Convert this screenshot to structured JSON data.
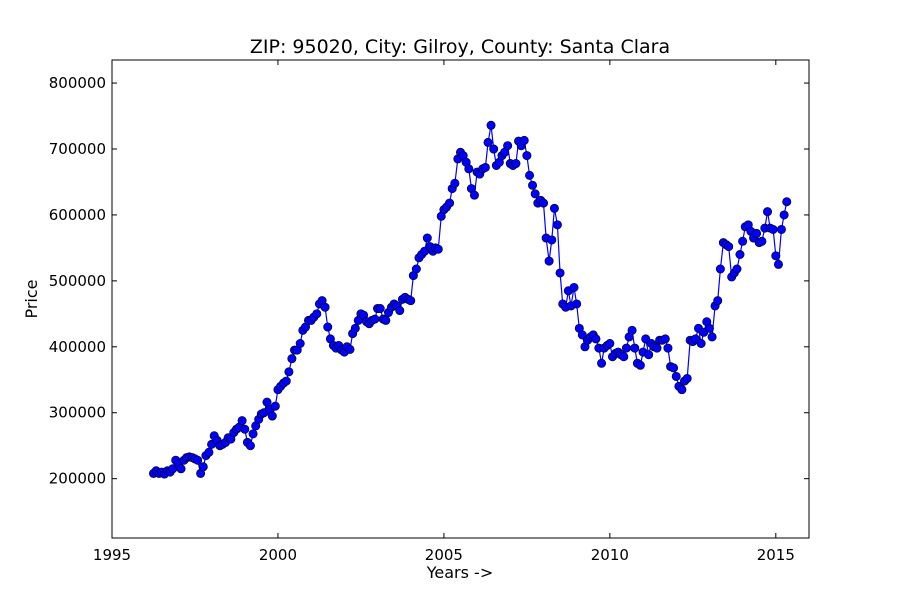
{
  "chart_data": {
    "type": "line",
    "title": "ZIP: 95020, City: Gilroy, County: Santa Clara",
    "xlabel": "Years ->",
    "ylabel": "Price",
    "xlim": [
      1995,
      2016
    ],
    "xticks": [
      1995,
      2000,
      2005,
      2010,
      2015
    ],
    "ylim": [
      110000,
      835000
    ],
    "yticks": [
      200000,
      300000,
      400000,
      500000,
      600000,
      700000,
      800000
    ],
    "grid": false,
    "x": [
      1996.25,
      1996.33,
      1996.42,
      1996.5,
      1996.58,
      1996.67,
      1996.75,
      1996.83,
      1996.92,
      1997,
      1997.08,
      1997.17,
      1997.25,
      1997.33,
      1997.42,
      1997.5,
      1997.58,
      1997.67,
      1997.75,
      1997.83,
      1997.92,
      1998,
      1998.08,
      1998.17,
      1998.25,
      1998.33,
      1998.42,
      1998.5,
      1998.58,
      1998.67,
      1998.75,
      1998.83,
      1998.92,
      1999,
      1999.08,
      1999.17,
      1999.25,
      1999.33,
      1999.42,
      1999.5,
      1999.58,
      1999.67,
      1999.75,
      1999.83,
      1999.92,
      2000,
      2000.08,
      2000.17,
      2000.25,
      2000.33,
      2000.42,
      2000.5,
      2000.58,
      2000.67,
      2000.75,
      2000.83,
      2000.92,
      2001,
      2001.08,
      2001.17,
      2001.25,
      2001.33,
      2001.42,
      2001.5,
      2001.58,
      2001.67,
      2001.75,
      2001.83,
      2001.92,
      2002,
      2002.08,
      2002.17,
      2002.25,
      2002.33,
      2002.42,
      2002.5,
      2002.58,
      2002.67,
      2002.75,
      2002.83,
      2002.92,
      2003,
      2003.08,
      2003.17,
      2003.25,
      2003.33,
      2003.42,
      2003.5,
      2003.58,
      2003.67,
      2003.75,
      2003.83,
      2003.92,
      2004,
      2004.08,
      2004.17,
      2004.25,
      2004.33,
      2004.42,
      2004.5,
      2004.58,
      2004.67,
      2004.75,
      2004.83,
      2004.92,
      2005,
      2005.08,
      2005.17,
      2005.25,
      2005.33,
      2005.42,
      2005.5,
      2005.58,
      2005.67,
      2005.75,
      2005.83,
      2005.92,
      2006,
      2006.08,
      2006.17,
      2006.25,
      2006.33,
      2006.42,
      2006.5,
      2006.58,
      2006.67,
      2006.75,
      2006.83,
      2006.92,
      2007,
      2007.08,
      2007.17,
      2007.25,
      2007.33,
      2007.42,
      2007.5,
      2007.58,
      2007.67,
      2007.75,
      2007.83,
      2007.92,
      2008,
      2008.08,
      2008.17,
      2008.25,
      2008.33,
      2008.42,
      2008.5,
      2008.58,
      2008.67,
      2008.75,
      2008.83,
      2008.92,
      2009,
      2009.08,
      2009.17,
      2009.25,
      2009.33,
      2009.42,
      2009.5,
      2009.58,
      2009.67,
      2009.75,
      2009.83,
      2009.92,
      2010,
      2010.08,
      2010.17,
      2010.25,
      2010.33,
      2010.42,
      2010.5,
      2010.58,
      2010.67,
      2010.75,
      2010.83,
      2010.92,
      2011,
      2011.08,
      2011.17,
      2011.25,
      2011.33,
      2011.42,
      2011.5,
      2011.58,
      2011.67,
      2011.75,
      2011.83,
      2011.92,
      2012,
      2012.08,
      2012.17,
      2012.25,
      2012.33,
      2012.42,
      2012.5,
      2012.58,
      2012.67,
      2012.75,
      2012.83,
      2012.92,
      2013,
      2013.08,
      2013.17,
      2013.25,
      2013.33,
      2013.42,
      2013.5,
      2013.58,
      2013.67,
      2013.75,
      2013.83,
      2013.92,
      2014,
      2014.08,
      2014.17,
      2014.25,
      2014.33,
      2014.42,
      2014.5,
      2014.58,
      2014.67,
      2014.75,
      2014.83,
      2014.92,
      2015,
      2015.08,
      2015.17,
      2015.25,
      2015.33
    ],
    "series": [
      {
        "color": "#0000ff",
        "values": [
          208000,
          212000,
          208000,
          210000,
          207000,
          212000,
          210000,
          215000,
          228000,
          222000,
          215000,
          228000,
          232000,
          233000,
          232000,
          230000,
          228000,
          208000,
          218000,
          235000,
          240000,
          252000,
          265000,
          258000,
          250000,
          252000,
          255000,
          262000,
          260000,
          270000,
          275000,
          278000,
          288000,
          275000,
          255000,
          250000,
          268000,
          280000,
          290000,
          298000,
          300000,
          316000,
          305000,
          295000,
          310000,
          335000,
          340000,
          345000,
          348000,
          362000,
          382000,
          395000,
          395000,
          405000,
          425000,
          430000,
          440000,
          440000,
          445000,
          450000,
          465000,
          470000,
          460000,
          430000,
          412000,
          402000,
          398000,
          402000,
          395000,
          392000,
          400000,
          396000,
          420000,
          428000,
          440000,
          450000,
          448000,
          438000,
          435000,
          440000,
          442000,
          458000,
          458000,
          442000,
          440000,
          452000,
          460000,
          465000,
          462000,
          455000,
          472000,
          475000,
          472000,
          470000,
          508000,
          518000,
          535000,
          540000,
          545000,
          565000,
          552000,
          545000,
          550000,
          548000,
          598000,
          608000,
          612000,
          618000,
          640000,
          648000,
          685000,
          695000,
          690000,
          680000,
          670000,
          640000,
          630000,
          665000,
          662000,
          670000,
          672000,
          710000,
          736000,
          700000,
          675000,
          680000,
          690000,
          695000,
          705000,
          678000,
          675000,
          678000,
          712000,
          705000,
          713000,
          690000,
          660000,
          645000,
          632000,
          618000,
          622000,
          618000,
          565000,
          530000,
          562000,
          610000,
          585000,
          512000,
          465000,
          460000,
          485000,
          462000,
          490000,
          465000,
          428000,
          418000,
          400000,
          410000,
          415000,
          418000,
          412000,
          398000,
          375000,
          398000,
          402000,
          405000,
          385000,
          390000,
          392000,
          388000,
          385000,
          398000,
          415000,
          425000,
          398000,
          375000,
          372000,
          392000,
          412000,
          388000,
          405000,
          400000,
          398000,
          410000,
          410000,
          412000,
          398000,
          370000,
          368000,
          355000,
          340000,
          335000,
          348000,
          352000,
          410000,
          408000,
          412000,
          428000,
          405000,
          422000,
          438000,
          428000,
          415000,
          462000,
          470000,
          518000,
          558000,
          555000,
          552000,
          506000,
          512000,
          518000,
          540000,
          560000,
          582000,
          585000,
          575000,
          565000,
          572000,
          558000,
          560000,
          580000,
          605000,
          580000,
          578000,
          538000,
          525000,
          578000,
          600000,
          620000
        ]
      }
    ]
  }
}
